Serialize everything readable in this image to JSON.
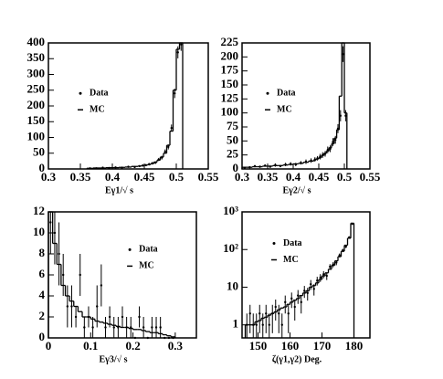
{
  "chart_data": [
    {
      "type": "histogram",
      "xlabel": "Eγ1/√ s",
      "xlim": [
        0.3,
        0.55
      ],
      "xticks": [
        0.3,
        0.35,
        0.4,
        0.45,
        0.5,
        0.55
      ],
      "ylim": [
        0,
        400
      ],
      "yticks": [
        0,
        50,
        100,
        150,
        200,
        250,
        300,
        350,
        400
      ],
      "log": false,
      "legend": "center-left",
      "bins": [
        0.36,
        0.37,
        0.38,
        0.39,
        0.4,
        0.41,
        0.42,
        0.43,
        0.44,
        0.445,
        0.45,
        0.455,
        0.46,
        0.465,
        0.47,
        0.475,
        0.48,
        0.485,
        0.49,
        0.495,
        0.5,
        0.505,
        0.51
      ],
      "series": [
        {
          "name": "Data",
          "marker": "point",
          "color": "#000000",
          "values": [
            2,
            2,
            4,
            3,
            5,
            4,
            7,
            6,
            9,
            11,
            12,
            15,
            18,
            20,
            30,
            36,
            55,
            70,
            130,
            240,
            370,
            395
          ],
          "errors": [
            1,
            1,
            2,
            2,
            2,
            2,
            3,
            2,
            3,
            3,
            3,
            4,
            4,
            4,
            5,
            6,
            7,
            8,
            11,
            15,
            19,
            20
          ]
        },
        {
          "name": "MC",
          "marker": "step",
          "color": "#000000",
          "values": [
            2,
            3,
            3,
            4,
            4,
            5,
            6,
            8,
            9,
            10,
            12,
            14,
            17,
            22,
            28,
            38,
            50,
            75,
            120,
            250,
            380,
            400
          ]
        }
      ]
    },
    {
      "type": "histogram",
      "xlabel": "Eγ2/√ s",
      "xlim": [
        0.3,
        0.55
      ],
      "xticks": [
        0.3,
        0.35,
        0.4,
        0.45,
        0.5,
        0.55
      ],
      "ylim": [
        0,
        225
      ],
      "yticks": [
        0,
        25,
        50,
        75,
        100,
        125,
        150,
        175,
        200,
        225
      ],
      "log": false,
      "legend": "center-left",
      "bins": [
        0.3,
        0.31,
        0.32,
        0.33,
        0.34,
        0.35,
        0.36,
        0.37,
        0.38,
        0.39,
        0.4,
        0.41,
        0.42,
        0.43,
        0.44,
        0.445,
        0.45,
        0.455,
        0.46,
        0.465,
        0.47,
        0.475,
        0.48,
        0.485,
        0.49,
        0.495,
        0.5,
        0.505
      ],
      "series": [
        {
          "name": "Data",
          "marker": "point",
          "color": "#000000",
          "values": [
            2,
            3,
            5,
            4,
            6,
            4,
            7,
            5,
            8,
            9,
            8,
            11,
            13,
            15,
            17,
            19,
            22,
            25,
            27,
            34,
            36,
            48,
            52,
            72,
            95,
            205,
            95
          ],
          "errors": [
            1,
            2,
            2,
            2,
            2,
            2,
            3,
            2,
            3,
            3,
            3,
            3,
            4,
            4,
            4,
            4,
            5,
            5,
            5,
            6,
            6,
            7,
            7,
            8,
            10,
            14,
            10
          ]
        },
        {
          "name": "MC",
          "marker": "step",
          "color": "#000000",
          "values": [
            3,
            3,
            4,
            4,
            5,
            5,
            6,
            6,
            7,
            8,
            9,
            10,
            12,
            14,
            16,
            18,
            20,
            24,
            28,
            32,
            38,
            45,
            55,
            70,
            130,
            225,
            100
          ]
        }
      ]
    },
    {
      "type": "histogram",
      "xlabel": "Eγ3/√ s",
      "xlim": [
        0,
        0.35
      ],
      "xticks": [
        0,
        0.1,
        0.2,
        0.3
      ],
      "ylim": [
        0,
        12
      ],
      "yticks": [
        0,
        2,
        4,
        6,
        8,
        10,
        12
      ],
      "log": false,
      "legend": "center-right",
      "bins": [
        0,
        0.01,
        0.02,
        0.03,
        0.04,
        0.05,
        0.06,
        0.07,
        0.08,
        0.09,
        0.1,
        0.11,
        0.12,
        0.13,
        0.14,
        0.15,
        0.16,
        0.17,
        0.18,
        0.19,
        0.2,
        0.21,
        0.22,
        0.23,
        0.24,
        0.25,
        0.26,
        0.27,
        0.28,
        0.29,
        0.3
      ],
      "series": [
        {
          "name": "Data",
          "marker": "point",
          "color": "#000000",
          "values": [
            11,
            10,
            8,
            6,
            3,
            3,
            2,
            6,
            1,
            2,
            1,
            3,
            5,
            1,
            2,
            1,
            1,
            2,
            1,
            1,
            0,
            2,
            1,
            0,
            1,
            1,
            1,
            0,
            0,
            0
          ],
          "errors": [
            3,
            3,
            3,
            2,
            2,
            2,
            1,
            2,
            1,
            1,
            1,
            2,
            2,
            1,
            1,
            1,
            1,
            1,
            1,
            1,
            0,
            1,
            1,
            0,
            1,
            1,
            1,
            0,
            0,
            0
          ]
        },
        {
          "name": "MC",
          "marker": "step",
          "color": "#000000",
          "values": [
            12,
            9,
            7,
            5,
            4,
            3.5,
            3,
            2.5,
            2,
            2,
            1.8,
            1.6,
            1.5,
            1.4,
            1.3,
            1.2,
            1.1,
            1,
            1,
            0.9,
            0.8,
            0.8,
            0.7,
            0.6,
            0.5,
            0.5,
            0.4,
            0.3,
            0.2,
            0.1
          ]
        }
      ]
    },
    {
      "type": "histogram",
      "xlabel": "ζ(γ1,γ2)  Deg.",
      "xlim": [
        145,
        185
      ],
      "xticks": [
        150,
        160,
        170,
        180
      ],
      "ylim": [
        0.45,
        1000
      ],
      "yticks": [
        1,
        10,
        {
          "value": 100,
          "label": "10²"
        },
        {
          "value": 1000,
          "label": "10³"
        }
      ],
      "log": true,
      "legend": "upper-left",
      "bins": [
        146,
        147,
        148,
        149,
        150,
        151,
        152,
        153,
        154,
        155,
        156,
        157,
        158,
        159,
        160,
        161,
        162,
        163,
        164,
        165,
        166,
        167,
        168,
        169,
        170,
        171,
        172,
        173,
        174,
        175,
        176,
        177,
        178,
        179,
        180
      ],
      "series": [
        {
          "name": "Data",
          "marker": "point",
          "color": "#000000",
          "values": [
            1,
            2,
            1,
            1,
            2,
            1,
            2,
            1,
            2,
            3,
            2,
            1,
            4,
            2,
            5,
            3,
            6,
            4,
            8,
            7,
            12,
            9,
            15,
            18,
            22,
            20,
            35,
            40,
            45,
            70,
            95,
            120,
            210,
            480
          ],
          "errors": [
            1,
            1.4,
            1,
            1,
            1.4,
            1,
            1.4,
            1,
            1.4,
            1.7,
            1.4,
            1,
            2,
            1.4,
            2.2,
            1.7,
            2.4,
            2,
            2.8,
            2.6,
            3.5,
            3,
            3.9,
            4.2,
            4.7,
            4.5,
            5.9,
            6.3,
            6.7,
            8.4,
            9.7,
            11,
            14.5,
            22
          ]
        },
        {
          "name": "MC",
          "marker": "step",
          "color": "#000000",
          "values": [
            1,
            1,
            1,
            1.2,
            1.3,
            1.5,
            1.6,
            1.8,
            2,
            2.2,
            2.5,
            2.8,
            3,
            3.5,
            4,
            4.5,
            5,
            6,
            7,
            8,
            10,
            11,
            13,
            16,
            20,
            24,
            30,
            38,
            50,
            65,
            90,
            130,
            200,
            500
          ]
        }
      ]
    }
  ]
}
